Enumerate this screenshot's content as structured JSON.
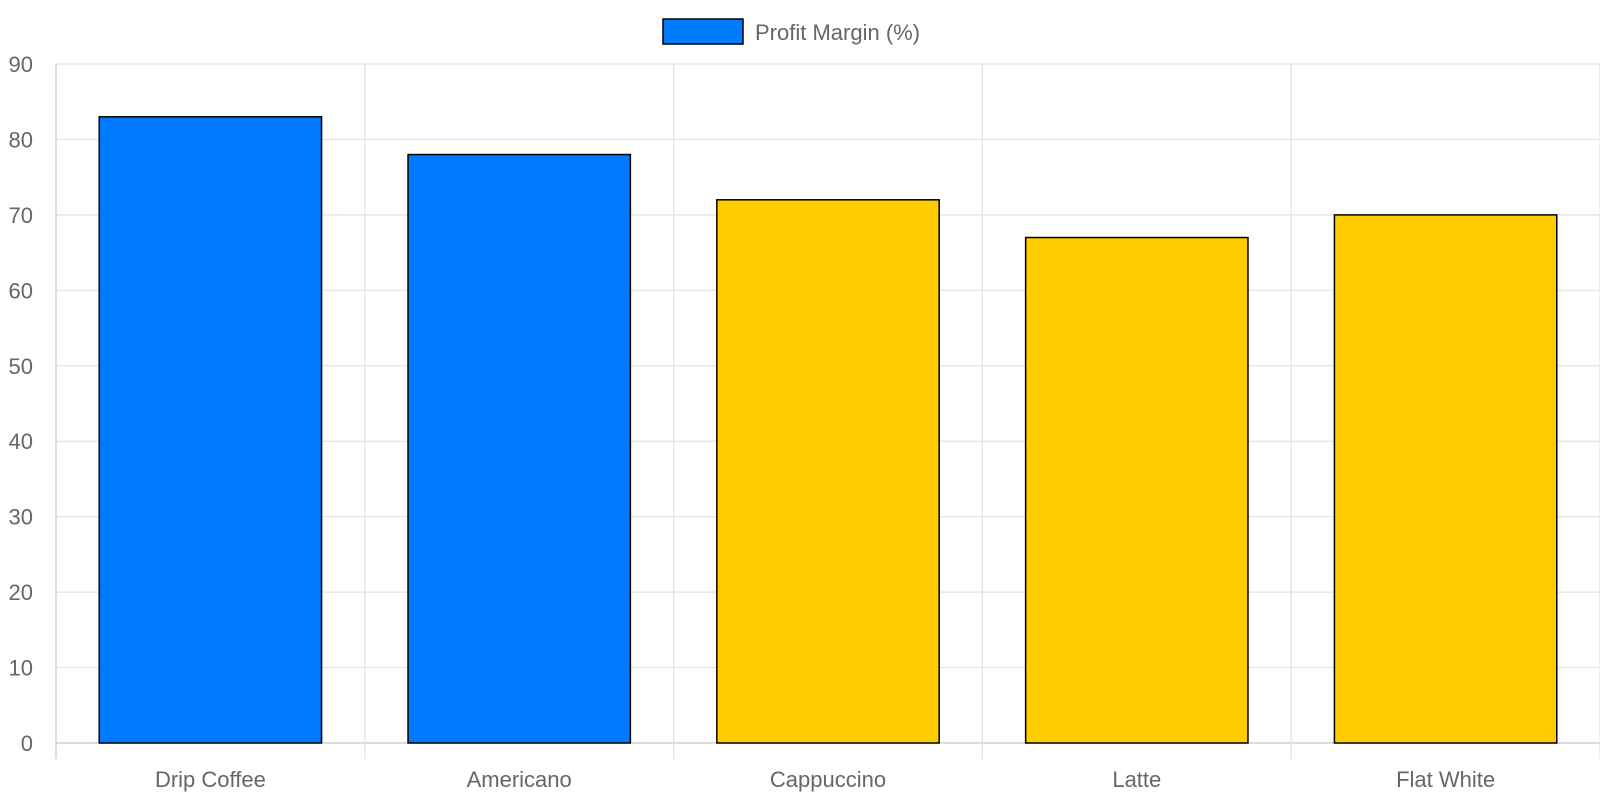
{
  "chart_data": {
    "type": "bar",
    "categories": [
      "Drip Coffee",
      "Americano",
      "Cappuccino",
      "Latte",
      "Flat White"
    ],
    "series": [
      {
        "name": "Profit Margin (%)",
        "values": [
          83,
          78,
          72,
          67,
          70
        ],
        "colors": [
          "#007bff",
          "#007bff",
          "#ffcc00",
          "#ffcc00",
          "#ffcc00"
        ]
      }
    ],
    "ylim": [
      0,
      90
    ],
    "yticks": [
      "0",
      "10",
      "20",
      "30",
      "40",
      "50",
      "60",
      "70",
      "80",
      "90"
    ],
    "legend_position": "top",
    "legend_color": "#007bff",
    "bar_border_color": "#000000",
    "grid": true
  }
}
